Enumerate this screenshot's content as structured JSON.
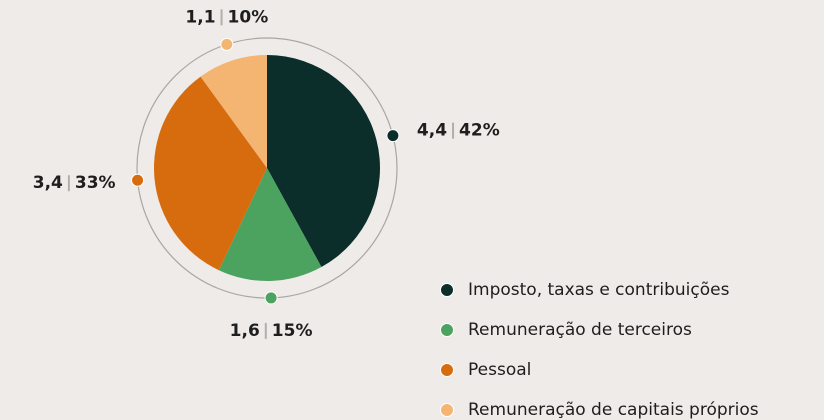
{
  "chart_data": {
    "type": "pie",
    "categories": [
      "Imposto, taxas e contribuições",
      "Remuneração de terceiros",
      "Pessoal",
      "Remuneração de capitais próprios"
    ],
    "values": [
      42,
      15,
      33,
      10
    ],
    "value_labels": [
      "42%",
      "15%",
      "33%",
      "10%"
    ],
    "amounts": [
      4.4,
      1.6,
      3.4,
      1.1
    ],
    "amount_labels": [
      "4,4",
      "1,6",
      "3,4",
      "1,1"
    ],
    "colors": [
      "#0b2e2b",
      "#4ba35f",
      "#d76c0e",
      "#f4b573"
    ]
  }
}
